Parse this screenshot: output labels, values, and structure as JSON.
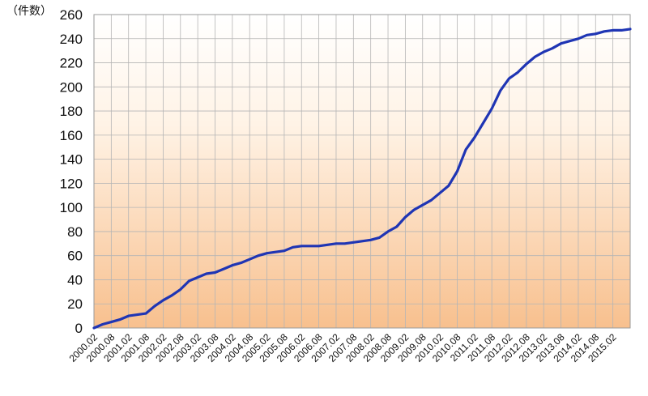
{
  "chart_data": {
    "type": "line",
    "title": "",
    "xlabel": "",
    "ylabel": "（件数）",
    "ylim": [
      0,
      260
    ],
    "yticks": [
      0,
      20,
      40,
      60,
      80,
      100,
      120,
      140,
      160,
      180,
      200,
      220,
      240,
      260
    ],
    "xlim": [
      "2000.02",
      "2015.08"
    ],
    "xticks": [
      "2000.02",
      "2000.08",
      "2001.02",
      "2001.08",
      "2002.02",
      "2002.08",
      "2003.02",
      "2003.08",
      "2004.02",
      "2004.08",
      "2005.02",
      "2005.08",
      "2006.02",
      "2006.08",
      "2007.02",
      "2007.08",
      "2008.02",
      "2008.08",
      "2009.02",
      "2009.08",
      "2010.02",
      "2010.08",
      "2011.02",
      "2011.08",
      "2012.02",
      "2012.08",
      "2013.02",
      "2013.08",
      "2014.02",
      "2014.08",
      "2015.02"
    ],
    "grid": true,
    "colors": {
      "line": "#1f35b4",
      "grid": "#b5b5b5",
      "bg_top": "#ffffff",
      "bg_bottom": "#f8c08e"
    },
    "series": [
      {
        "name": "",
        "x": [
          "2000.02",
          "2000.05",
          "2000.08",
          "2000.11",
          "2001.02",
          "2001.05",
          "2001.08",
          "2001.11",
          "2002.02",
          "2002.05",
          "2002.08",
          "2002.11",
          "2003.02",
          "2003.05",
          "2003.08",
          "2003.11",
          "2004.02",
          "2004.05",
          "2004.08",
          "2004.11",
          "2005.02",
          "2005.05",
          "2005.08",
          "2005.11",
          "2006.02",
          "2006.05",
          "2006.08",
          "2006.11",
          "2007.02",
          "2007.05",
          "2007.08",
          "2007.11",
          "2008.02",
          "2008.05",
          "2008.08",
          "2008.11",
          "2009.02",
          "2009.05",
          "2009.08",
          "2009.11",
          "2010.02",
          "2010.05",
          "2010.08",
          "2010.11",
          "2011.02",
          "2011.05",
          "2011.08",
          "2011.11",
          "2012.02",
          "2012.05",
          "2012.08",
          "2012.11",
          "2013.02",
          "2013.05",
          "2013.08",
          "2013.11",
          "2014.02",
          "2014.05",
          "2014.08",
          "2014.11",
          "2015.02",
          "2015.05",
          "2015.08"
        ],
        "values": [
          0,
          3,
          5,
          7,
          10,
          11,
          12,
          18,
          23,
          27,
          32,
          39,
          42,
          45,
          46,
          49,
          52,
          54,
          57,
          60,
          62,
          63,
          64,
          67,
          68,
          68,
          68,
          69,
          70,
          70,
          71,
          72,
          73,
          75,
          80,
          84,
          92,
          98,
          102,
          106,
          112,
          118,
          130,
          148,
          158,
          170,
          182,
          197,
          207,
          212,
          219,
          225,
          229,
          232,
          236,
          238,
          240,
          243,
          244,
          246,
          247,
          247,
          248
        ]
      }
    ]
  }
}
